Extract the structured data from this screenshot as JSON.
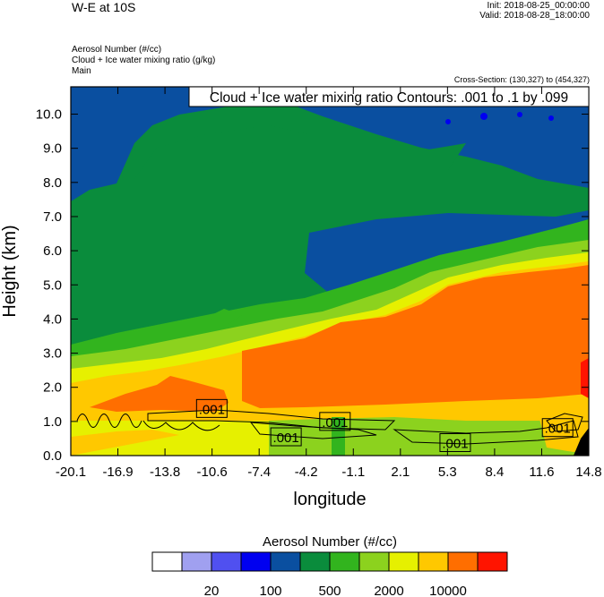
{
  "header": {
    "title": "W-E at 10S",
    "init": "Init: 2018-08-25_00:00:00",
    "valid": "Valid: 2018-08-28_18:00:00",
    "fields": [
      "Aerosol Number   (#/cc)",
      "Cloud + Ice water mixing ratio   (g/kg)",
      "Main"
    ],
    "cross_section": "Cross-Section: (130,327) to (454,327)"
  },
  "chart_data": {
    "type": "heatmap",
    "title": "W-E at 10S",
    "xlabel": "longitude",
    "ylabel": "Height (km)",
    "xlim": [
      -20.1,
      14.8
    ],
    "ylim": [
      0.0,
      10.8
    ],
    "xticks": [
      "-20.1",
      "-16.9",
      "-13.8",
      "-10.6",
      "-7.4",
      "-4.2",
      "-1.1",
      "2.1",
      "5.3",
      "8.4",
      "11.6",
      "14.8"
    ],
    "yticks": [
      "0.0",
      "1.0",
      "2.0",
      "3.0",
      "4.0",
      "5.0",
      "6.0",
      "7.0",
      "8.0",
      "9.0",
      "10.0"
    ],
    "contour_annotation": "Cloud + Ice water mixing ratio Contours: .001 to .1 by .099",
    "contour_labels": [
      {
        "text": ".001",
        "x": -10.6,
        "y": 1.38
      },
      {
        "text": ".001",
        "x": -2.3,
        "y": 1.0
      },
      {
        "text": ".001",
        "x": -5.6,
        "y": 0.55
      },
      {
        "text": ".001",
        "x": 5.8,
        "y": 0.38
      },
      {
        "text": ".001",
        "x": 12.7,
        "y": 0.82
      }
    ],
    "colorbar": {
      "title": "Aerosol Number  (#/cc)",
      "colors": [
        "#ffffff",
        "#a0a0f0",
        "#5050f0",
        "#0000f0",
        "#0a4fa0",
        "#0a8c3c",
        "#32b41e",
        "#8cd21e",
        "#e6f000",
        "#ffc800",
        "#ff6e00",
        "#ff1400"
      ],
      "labels": [
        "20",
        "100",
        "500",
        "2000",
        "10000"
      ]
    },
    "fields": [
      {
        "name": "Aerosol Number",
        "units": "#/cc",
        "render": "filled contours"
      },
      {
        "name": "Cloud + Ice water mixing ratio",
        "units": "g/kg",
        "render": "line contours"
      }
    ]
  }
}
